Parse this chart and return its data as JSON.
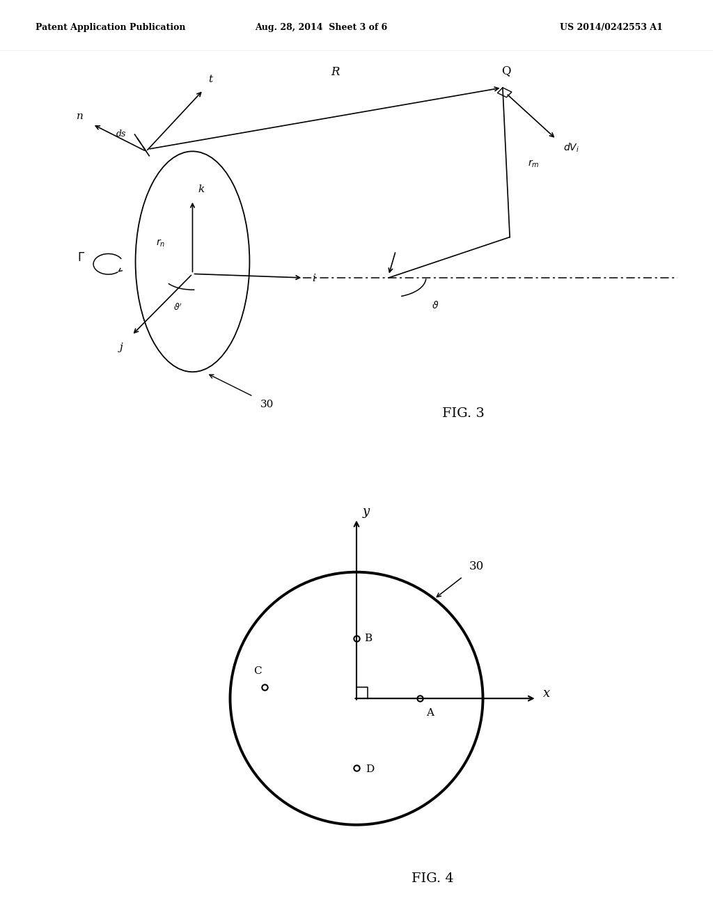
{
  "header_left": "Patent Application Publication",
  "header_center": "Aug. 28, 2014  Sheet 3 of 6",
  "header_right": "US 2014/0242553 A1",
  "fig3_label": "FIG. 3",
  "fig4_label": "FIG. 4",
  "fig3_number": "30",
  "fig4_number": "30",
  "background": "#ffffff",
  "line_color": "#000000"
}
